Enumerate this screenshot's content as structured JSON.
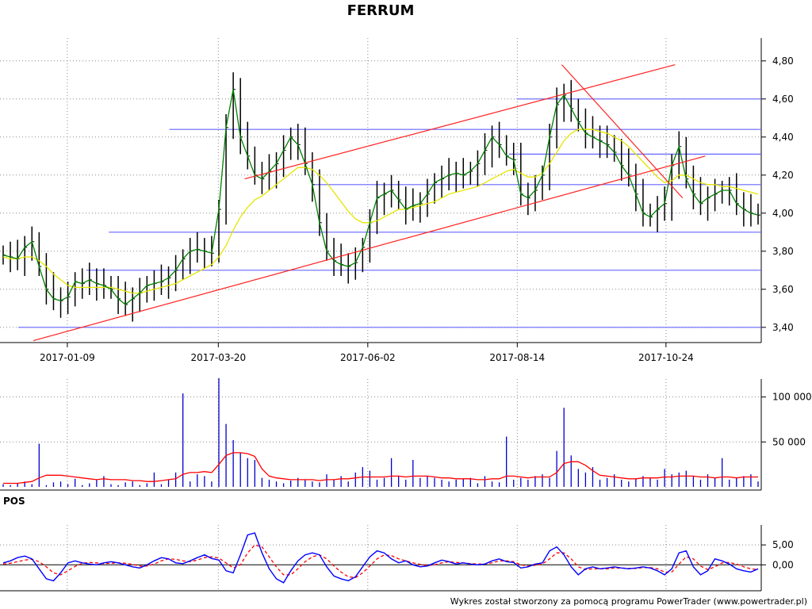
{
  "title": "FERRUM",
  "footer": "Wykres został stworzony za pomocą programu PowerTrader (www.powertrader.pl)",
  "colors": {
    "price": "#000000",
    "ma_short": "#008000",
    "ma_long": "#e6e600",
    "support_lines": "#6666ff",
    "trend_lines": "#ff2020",
    "volume": "#0000cc",
    "volume_ma": "#ff0000",
    "pos": "#0000ff",
    "pos_signal": "#ff0000"
  },
  "chart_data": [
    {
      "type": "line",
      "name": "price-panel",
      "title": "FERRUM",
      "x_tick_labels": [
        "2017-01-09",
        "2017-03-20",
        "2017-06-02",
        "2017-08-14",
        "2017-10-24"
      ],
      "y_tick_labels": [
        "3,40",
        "3,60",
        "3,80",
        "4,00",
        "4,20",
        "4,40",
        "4,60",
        "4,80"
      ],
      "ylim": [
        3.32,
        4.92
      ],
      "grid": true,
      "horizontal_levels": [
        3.4,
        3.7,
        3.9,
        4.15,
        4.31,
        4.44,
        4.6
      ],
      "trend_lines": [
        {
          "x": [
            0.04,
            0.93
          ],
          "y": [
            3.33,
            4.3
          ]
        },
        {
          "x": [
            0.32,
            0.89
          ],
          "y": [
            4.18,
            4.78
          ]
        },
        {
          "x": [
            0.74,
            0.9
          ],
          "y": [
            4.78,
            4.08
          ]
        }
      ],
      "series": [
        {
          "values": [
            3.78,
            3.77,
            3.76,
            3.82,
            3.85,
            3.72,
            3.6,
            3.55,
            3.54,
            3.56,
            3.64,
            3.63,
            3.65,
            3.63,
            3.62,
            3.6,
            3.55,
            3.52,
            3.55,
            3.58,
            3.62,
            3.63,
            3.64,
            3.66,
            3.7,
            3.76,
            3.8,
            3.81,
            3.8,
            3.79,
            4.02,
            4.45,
            4.65,
            4.4,
            4.3,
            4.2,
            4.18,
            4.22,
            4.26,
            4.33,
            4.4,
            4.36,
            4.26,
            4.15,
            3.95,
            3.8,
            3.75,
            3.73,
            3.72,
            3.74,
            3.82,
            3.95,
            4.08,
            4.1,
            4.12,
            4.07,
            4.02,
            4.04,
            4.05,
            4.1,
            4.16,
            4.18,
            4.2,
            4.21,
            4.2,
            4.22,
            4.26,
            4.33,
            4.4,
            4.36,
            4.3,
            4.28,
            4.1,
            4.08,
            4.12,
            4.2,
            4.4,
            4.57,
            4.62,
            4.55,
            4.48,
            4.42,
            4.4,
            4.38,
            4.36,
            4.32,
            4.25,
            4.2,
            4.1,
            4.0,
            3.98,
            4.02,
            4.05,
            4.25,
            4.35,
            4.18,
            4.1,
            4.05,
            4.08,
            4.1,
            4.12,
            4.12,
            4.05,
            4.02,
            4.0,
            3.99
          ]
        },
        {
          "values": [
            3.77,
            3.76,
            3.76,
            3.77,
            3.77,
            3.75,
            3.72,
            3.68,
            3.65,
            3.62,
            3.61,
            3.61,
            3.61,
            3.61,
            3.61,
            3.61,
            3.6,
            3.59,
            3.58,
            3.58,
            3.59,
            3.6,
            3.61,
            3.62,
            3.63,
            3.65,
            3.67,
            3.69,
            3.71,
            3.73,
            3.77,
            3.83,
            3.91,
            3.98,
            4.03,
            4.07,
            4.09,
            4.12,
            4.15,
            4.18,
            4.21,
            4.24,
            4.24,
            4.23,
            4.2,
            4.16,
            4.11,
            4.06,
            4.01,
            3.97,
            3.95,
            3.95,
            3.96,
            3.98,
            4.0,
            4.02,
            4.02,
            4.03,
            4.04,
            4.05,
            4.06,
            4.08,
            4.1,
            4.11,
            4.12,
            4.13,
            4.14,
            4.16,
            4.18,
            4.2,
            4.22,
            4.23,
            4.21,
            4.19,
            4.19,
            4.21,
            4.26,
            4.32,
            4.38,
            4.42,
            4.44,
            4.44,
            4.44,
            4.43,
            4.42,
            4.4,
            4.38,
            4.35,
            4.31,
            4.27,
            4.23,
            4.19,
            4.16,
            4.17,
            4.2,
            4.2,
            4.18,
            4.16,
            4.15,
            4.15,
            4.14,
            4.14,
            4.13,
            4.12,
            4.11,
            4.1
          ]
        }
      ]
    },
    {
      "type": "bar",
      "name": "volume-panel",
      "y_tick_labels": [
        "50 000",
        "100 000"
      ],
      "ylim": [
        0,
        120000
      ],
      "grid": true,
      "series": [
        {
          "values": [
            3000,
            2000,
            4000,
            6000,
            3000,
            48000,
            2000,
            5000,
            6000,
            3000,
            9000,
            2000,
            4000,
            8000,
            12000,
            3000,
            2000,
            5000,
            6000,
            2000,
            4000,
            16000,
            3000,
            8000,
            16000,
            104000,
            6000,
            14000,
            12000,
            6000,
            121000,
            70000,
            52000,
            38000,
            32000,
            30000,
            10000,
            8000,
            6000,
            4000,
            7000,
            10000,
            8000,
            6000,
            5000,
            14000,
            8000,
            12000,
            6000,
            16000,
            22000,
            18000,
            8000,
            10000,
            32000,
            12000,
            8000,
            30000,
            10000,
            12000,
            10000,
            8000,
            6000,
            8000,
            9000,
            10000,
            4000,
            12000,
            6000,
            5000,
            56000,
            8000,
            10000,
            8000,
            12000,
            14000,
            10000,
            40000,
            88000,
            35000,
            20000,
            16000,
            22000,
            8000,
            10000,
            14000,
            8000,
            6000,
            9000,
            12000,
            10000,
            8000,
            20000,
            14000,
            16000,
            18000,
            12000,
            8000,
            14000,
            10000,
            32000,
            8000,
            10000,
            12000,
            14000,
            6000
          ]
        },
        {
          "values": [
            4000,
            4000,
            4000,
            5000,
            6000,
            10000,
            13000,
            13000,
            13000,
            12000,
            11000,
            10000,
            9000,
            8000,
            9000,
            8000,
            8000,
            8000,
            7000,
            7000,
            6000,
            6000,
            7000,
            8000,
            9000,
            14000,
            16000,
            16000,
            17000,
            16000,
            25000,
            35000,
            38000,
            38000,
            37000,
            34000,
            20000,
            12000,
            10000,
            9000,
            8000,
            8000,
            8000,
            8000,
            7000,
            8000,
            8000,
            9000,
            9000,
            10000,
            11000,
            11000,
            11000,
            11000,
            12000,
            12000,
            11000,
            12000,
            12000,
            12000,
            11000,
            10000,
            10000,
            9000,
            9000,
            9000,
            8000,
            8000,
            9000,
            9000,
            12000,
            12000,
            11000,
            10000,
            11000,
            11000,
            11000,
            16000,
            26000,
            28000,
            28000,
            24000,
            18000,
            13000,
            12000,
            11000,
            10000,
            9000,
            9000,
            10000,
            10000,
            10000,
            11000,
            11000,
            12000,
            12000,
            12000,
            11000,
            11000,
            10000,
            11000,
            11000,
            10000,
            11000,
            11000,
            11000
          ]
        }
      ]
    },
    {
      "type": "line",
      "name": "pos-panel",
      "label": "POS",
      "y_tick_labels": [
        "0,00",
        "5,00"
      ],
      "ylim": [
        -6.5,
        10
      ],
      "grid": true,
      "series": [
        {
          "values": [
            0.5,
            1.0,
            1.8,
            2.2,
            1.5,
            -1.0,
            -3.5,
            -4.0,
            -2.0,
            0.5,
            1.0,
            0.5,
            0.2,
            0.0,
            0.5,
            0.8,
            0.5,
            0.0,
            -0.5,
            -0.8,
            0.0,
            1.0,
            1.8,
            1.5,
            0.5,
            0.3,
            1.0,
            1.8,
            2.5,
            1.6,
            1.2,
            -1.5,
            -2.0,
            2.5,
            7.5,
            8.0,
            3.0,
            -1.0,
            -3.5,
            -4.5,
            -1.5,
            1.0,
            2.5,
            3.0,
            2.5,
            -0.5,
            -2.8,
            -3.5,
            -4.0,
            -3.0,
            -0.5,
            2.0,
            3.5,
            3.0,
            1.5,
            0.5,
            1.0,
            0.0,
            -0.5,
            -0.3,
            0.5,
            1.2,
            0.8,
            0.2,
            0.5,
            0.2,
            0.0,
            0.2,
            1.0,
            1.5,
            0.8,
            0.6,
            -0.8,
            -0.5,
            0.2,
            0.5,
            3.5,
            4.5,
            2.5,
            -0.5,
            -2.5,
            -1.0,
            -0.5,
            -1.0,
            -0.8,
            -0.5,
            -0.8,
            -1.0,
            -0.8,
            -0.5,
            -0.8,
            -1.5,
            -2.5,
            -1.0,
            3.0,
            3.5,
            -0.5,
            -2.5,
            -1.5,
            1.5,
            1.0,
            0.2,
            -1.0,
            -1.5,
            -1.8,
            -1.0
          ]
        },
        {
          "values": [
            0.2,
            0.4,
            0.8,
            1.2,
            1.4,
            0.8,
            -0.5,
            -2.0,
            -2.5,
            -1.5,
            -0.4,
            0.4,
            0.6,
            0.5,
            0.3,
            0.4,
            0.5,
            0.4,
            0.1,
            -0.3,
            -0.3,
            0.2,
            1.0,
            1.5,
            1.4,
            1.0,
            0.8,
            1.2,
            1.8,
            2.0,
            1.7,
            0.5,
            -0.8,
            0.0,
            3.0,
            5.0,
            4.5,
            2.0,
            -0.5,
            -2.5,
            -2.5,
            -1.0,
            0.8,
            2.0,
            2.5,
            1.5,
            -0.3,
            -1.8,
            -3.0,
            -3.2,
            -2.0,
            -0.3,
            1.5,
            2.5,
            2.3,
            1.5,
            1.0,
            0.5,
            0.1,
            -0.2,
            0.0,
            0.5,
            0.8,
            0.6,
            0.5,
            0.3,
            0.2,
            0.2,
            0.5,
            1.0,
            1.0,
            0.8,
            0.0,
            -0.3,
            -0.1,
            0.2,
            1.5,
            3.0,
            3.0,
            1.5,
            -0.5,
            -1.2,
            -1.0,
            -1.0,
            -1.0,
            -0.8,
            -0.8,
            -0.9,
            -0.9,
            -0.7,
            -0.7,
            -1.0,
            -1.8,
            -1.8,
            0.2,
            2.0,
            1.5,
            -0.3,
            -1.2,
            -0.5,
            0.5,
            0.6,
            0.2,
            -0.5,
            -1.0,
            -1.2
          ]
        }
      ]
    }
  ]
}
